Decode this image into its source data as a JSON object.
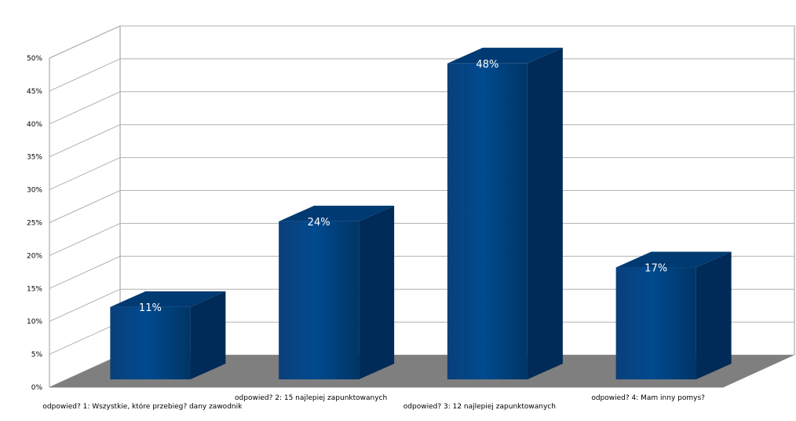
{
  "chart_data": {
    "type": "bar",
    "title": "",
    "xlabel": "",
    "ylabel": "",
    "categories": [
      "odpowied? 1: Wszystkie, które przebieg? dany zawodnik",
      "odpowied? 2: 15 najlepiej zapunktowanych",
      "odpowied? 3: 12 najlepiej zapunktowanych",
      "odpowied? 4: Mam inny pomys?"
    ],
    "values": [
      11,
      24,
      48,
      17
    ],
    "data_labels": [
      "11%",
      "24%",
      "48%",
      "17%"
    ],
    "ylim": [
      0,
      50
    ],
    "yticks": [
      0,
      5,
      10,
      15,
      20,
      25,
      30,
      35,
      40,
      45,
      50
    ],
    "ytick_labels": [
      "0%",
      "5%",
      "10%",
      "15%",
      "20%",
      "25%",
      "30%",
      "35%",
      "40%",
      "45%",
      "50%"
    ],
    "grid": true,
    "legend": "none",
    "style": "3d"
  },
  "colors": {
    "bar_front": "#004a8f",
    "bar_side": "#002a57",
    "bar_top": "#003a72",
    "floor": "#7f7f7f",
    "grid": "#b0b0b0",
    "axis": "#9a9a9a"
  }
}
